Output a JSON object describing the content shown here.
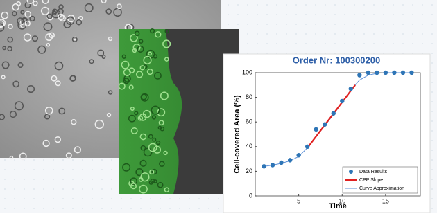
{
  "chart_data": {
    "type": "line",
    "title": "Order Nr: 100300200",
    "x_label": "Time",
    "y_label": "Cell-covered Area (%)",
    "xlim": [
      0,
      19
    ],
    "ylim": [
      0,
      100
    ],
    "xticks": [
      5,
      10,
      15
    ],
    "yticks": [
      0,
      20,
      40,
      60,
      80,
      100
    ],
    "legend": "lower right",
    "series": [
      {
        "name": "Data Results",
        "color": "#2e75b6",
        "marker": true,
        "x": [
          1,
          2,
          3,
          4,
          5,
          6,
          7,
          8,
          9,
          10,
          11,
          12,
          13,
          14,
          15,
          16,
          17,
          18
        ],
        "values": [
          24,
          25,
          27,
          29,
          33,
          40,
          54,
          58,
          67,
          77,
          87,
          98,
          100,
          100,
          100,
          100,
          100,
          100
        ]
      },
      {
        "name": "CPP Slope",
        "color": "#e02020",
        "x": [
          6,
          11.5
        ],
        "values": [
          39,
          90
        ]
      },
      {
        "name": "Curve Approximation",
        "color": "#5b8fd6",
        "x": [
          1,
          2,
          3,
          4,
          5,
          6,
          7,
          8,
          9,
          10,
          11,
          12,
          13,
          14,
          15,
          16,
          17,
          18
        ],
        "values": [
          24,
          25,
          26.5,
          28.5,
          32,
          39,
          48,
          57,
          66,
          76,
          86,
          94,
          98,
          99.5,
          100,
          100,
          100,
          100
        ]
      }
    ]
  }
}
